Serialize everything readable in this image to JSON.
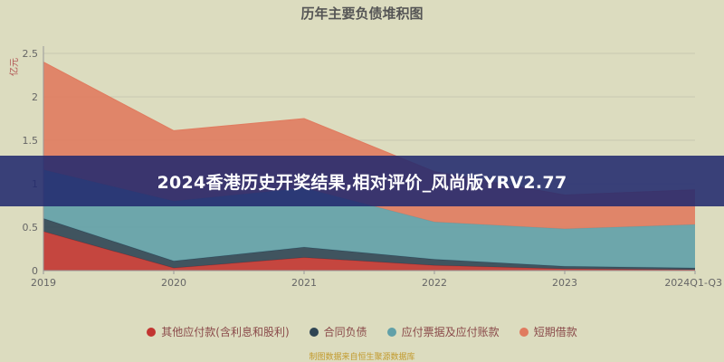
{
  "banner": {
    "text": "2024香港历史开奖结果,相对评价_风尚版YRV2.77"
  },
  "footnote": {
    "text": "制图数据来自恒生聚源数据库"
  },
  "chart_data": {
    "type": "area",
    "stacked": true,
    "title": "历年主要负债堆积图",
    "unit": "亿元",
    "categories": [
      "2019",
      "2020",
      "2021",
      "2022",
      "2023",
      "2024Q1-Q3"
    ],
    "yticks": [
      "0",
      "0.5",
      "1",
      "1.5",
      "2",
      "2.5"
    ],
    "ylim": [
      0,
      2.5
    ],
    "grid": true,
    "legend_position": "bottom",
    "series": [
      {
        "name": "其他应付款(含利息和股利)",
        "color": "#c23531",
        "values": [
          0.45,
          0.03,
          0.15,
          0.06,
          0.02,
          0.01
        ]
      },
      {
        "name": "合同负债",
        "color": "#2f4554",
        "values": [
          0.15,
          0.08,
          0.12,
          0.07,
          0.03,
          0.02
        ]
      },
      {
        "name": "应付票据及应付账款",
        "color": "#61a0a8",
        "values": [
          0.56,
          0.69,
          0.68,
          0.43,
          0.43,
          0.5
        ]
      },
      {
        "name": "短期借款",
        "color": "#e07b5f",
        "values": [
          1.24,
          0.81,
          0.8,
          0.58,
          0.39,
          0.4
        ]
      }
    ]
  }
}
